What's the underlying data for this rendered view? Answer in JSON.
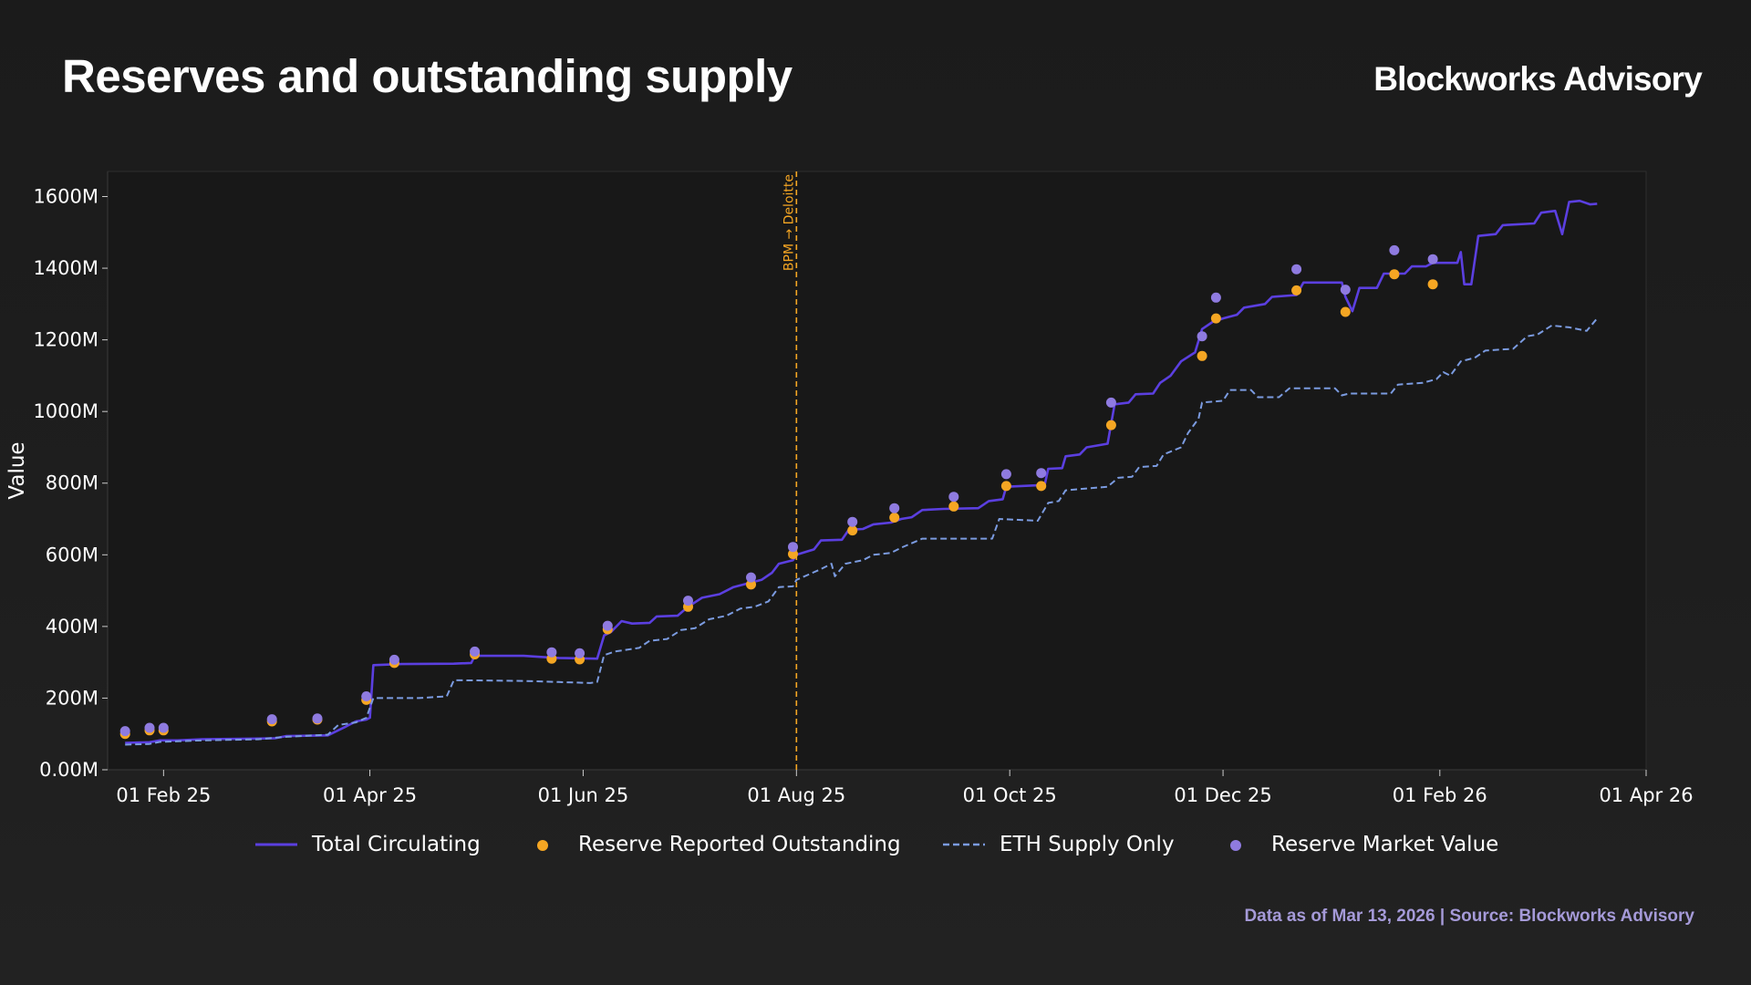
{
  "header": {
    "title": "Reserves and outstanding supply",
    "brand": "Blockworks Advisory"
  },
  "footer": {
    "note": "Data as of Mar 13, 2026 | Source: Blockworks Advisory"
  },
  "colors": {
    "total_circulating": "#5b3fe0",
    "reserve_reported": "#f5a623",
    "eth_supply": "#7b9be0",
    "reserve_market": "#8f7be0",
    "annotation": "#f5a623",
    "plot_bg": "#181818"
  },
  "chart_data": {
    "type": "line",
    "title": "Reserves and outstanding supply",
    "xlabel": "",
    "ylabel": "Value",
    "x_type": "date",
    "xlim": [
      "2025-01-16",
      "2026-04-01"
    ],
    "ylim": [
      0,
      1670
    ],
    "y_unit": "M",
    "y_ticks": [
      0,
      200,
      400,
      600,
      800,
      1000,
      1200,
      1400,
      1600
    ],
    "y_tick_labels": [
      "0.00M",
      "200M",
      "400M",
      "600M",
      "800M",
      "1000M",
      "1200M",
      "1400M",
      "1600M"
    ],
    "x_ticks": [
      "2025-02-01",
      "2025-04-01",
      "2025-06-01",
      "2025-08-01",
      "2025-10-01",
      "2025-12-01",
      "2026-02-01",
      "2026-04-01"
    ],
    "x_tick_labels": [
      "01 Feb 25",
      "01 Apr 25",
      "01 Jun 25",
      "01 Aug 25",
      "01 Oct 25",
      "01 Dec 25",
      "01 Feb 26",
      "01 Apr 26"
    ],
    "legend_position": "bottom",
    "grid": false,
    "annotations": [
      {
        "x": "2025-08-01",
        "label": "BPM → Deloitte",
        "style": "dashed-vertical"
      }
    ],
    "series": [
      {
        "name": "Total Circulating",
        "style": "solid-line",
        "points": [
          [
            "2025-01-21",
            75
          ],
          [
            "2025-01-28",
            77
          ],
          [
            "2025-01-31",
            82
          ],
          [
            "2025-02-05",
            82
          ],
          [
            "2025-02-12",
            85
          ],
          [
            "2025-02-20",
            86
          ],
          [
            "2025-02-28",
            87
          ],
          [
            "2025-03-05",
            88
          ],
          [
            "2025-03-08",
            94
          ],
          [
            "2025-03-20",
            96
          ],
          [
            "2025-03-25",
            120
          ],
          [
            "2025-03-28",
            135
          ],
          [
            "2025-03-31",
            140
          ],
          [
            "2025-04-01",
            145
          ],
          [
            "2025-04-02",
            292
          ],
          [
            "2025-04-10",
            295
          ],
          [
            "2025-04-25",
            296
          ],
          [
            "2025-04-30",
            298
          ],
          [
            "2025-05-01",
            318
          ],
          [
            "2025-05-15",
            318
          ],
          [
            "2025-05-20",
            315
          ],
          [
            "2025-05-25",
            312
          ],
          [
            "2025-06-05",
            310
          ],
          [
            "2025-06-07",
            375
          ],
          [
            "2025-06-09",
            385
          ],
          [
            "2025-06-12",
            415
          ],
          [
            "2025-06-15",
            408
          ],
          [
            "2025-06-20",
            410
          ],
          [
            "2025-06-22",
            428
          ],
          [
            "2025-06-28",
            430
          ],
          [
            "2025-07-01",
            455
          ],
          [
            "2025-07-05",
            480
          ],
          [
            "2025-07-10",
            490
          ],
          [
            "2025-07-14",
            510
          ],
          [
            "2025-07-18",
            520
          ],
          [
            "2025-07-22",
            530
          ],
          [
            "2025-07-25",
            550
          ],
          [
            "2025-07-27",
            575
          ],
          [
            "2025-07-31",
            585
          ],
          [
            "2025-08-01",
            600
          ],
          [
            "2025-08-06",
            615
          ],
          [
            "2025-08-08",
            640
          ],
          [
            "2025-08-14",
            642
          ],
          [
            "2025-08-16",
            670
          ],
          [
            "2025-08-20",
            672
          ],
          [
            "2025-08-23",
            685
          ],
          [
            "2025-08-28",
            690
          ],
          [
            "2025-08-31",
            700
          ],
          [
            "2025-09-03",
            705
          ],
          [
            "2025-09-06",
            725
          ],
          [
            "2025-09-12",
            728
          ],
          [
            "2025-09-22",
            730
          ],
          [
            "2025-09-25",
            750
          ],
          [
            "2025-09-29",
            755
          ],
          [
            "2025-09-30",
            790
          ],
          [
            "2025-10-11",
            795
          ],
          [
            "2025-10-12",
            840
          ],
          [
            "2025-10-16",
            842
          ],
          [
            "2025-10-17",
            875
          ],
          [
            "2025-10-21",
            880
          ],
          [
            "2025-10-23",
            900
          ],
          [
            "2025-10-29",
            910
          ],
          [
            "2025-10-31",
            1020
          ],
          [
            "2025-11-04",
            1025
          ],
          [
            "2025-11-06",
            1048
          ],
          [
            "2025-11-11",
            1050
          ],
          [
            "2025-11-13",
            1080
          ],
          [
            "2025-11-16",
            1100
          ],
          [
            "2025-11-19",
            1140
          ],
          [
            "2025-11-23",
            1165
          ],
          [
            "2025-11-25",
            1230
          ],
          [
            "2025-11-28",
            1250
          ],
          [
            "2025-12-01",
            1260
          ],
          [
            "2025-12-05",
            1270
          ],
          [
            "2025-12-07",
            1290
          ],
          [
            "2025-12-13",
            1300
          ],
          [
            "2025-12-15",
            1320
          ],
          [
            "2025-12-22",
            1325
          ],
          [
            "2025-12-24",
            1360
          ],
          [
            "2026-01-04",
            1360
          ],
          [
            "2026-01-05",
            1320
          ],
          [
            "2026-01-07",
            1280
          ],
          [
            "2026-01-09",
            1345
          ],
          [
            "2026-01-14",
            1345
          ],
          [
            "2026-01-16",
            1385
          ],
          [
            "2026-01-22",
            1385
          ],
          [
            "2026-01-24",
            1405
          ],
          [
            "2026-01-28",
            1405
          ],
          [
            "2026-01-30",
            1415
          ],
          [
            "2026-02-06",
            1415
          ],
          [
            "2026-02-07",
            1445
          ],
          [
            "2026-02-08",
            1355
          ],
          [
            "2026-02-10",
            1355
          ],
          [
            "2026-02-12",
            1490
          ],
          [
            "2026-02-17",
            1495
          ],
          [
            "2026-02-19",
            1520
          ],
          [
            "2026-02-28",
            1525
          ],
          [
            "2026-03-02",
            1555
          ],
          [
            "2026-03-06",
            1560
          ],
          [
            "2026-03-08",
            1495
          ],
          [
            "2026-03-10",
            1585
          ],
          [
            "2026-03-13",
            1588
          ],
          [
            "2026-03-16",
            1578
          ],
          [
            "2026-03-18",
            1580
          ]
        ]
      },
      {
        "name": "ETH Supply Only",
        "style": "dashed-line",
        "points": [
          [
            "2025-01-21",
            70
          ],
          [
            "2025-01-28",
            72
          ],
          [
            "2025-01-31",
            78
          ],
          [
            "2025-02-12",
            82
          ],
          [
            "2025-02-28",
            85
          ],
          [
            "2025-03-08",
            92
          ],
          [
            "2025-03-20",
            98
          ],
          [
            "2025-03-23",
            125
          ],
          [
            "2025-03-28",
            132
          ],
          [
            "2025-03-31",
            145
          ],
          [
            "2025-04-02",
            200
          ],
          [
            "2025-04-15",
            200
          ],
          [
            "2025-04-23",
            205
          ],
          [
            "2025-04-25",
            250
          ],
          [
            "2025-05-15",
            248
          ],
          [
            "2025-05-25",
            245
          ],
          [
            "2025-06-03",
            242
          ],
          [
            "2025-06-05",
            245
          ],
          [
            "2025-06-07",
            320
          ],
          [
            "2025-06-10",
            330
          ],
          [
            "2025-06-17",
            340
          ],
          [
            "2025-06-20",
            360
          ],
          [
            "2025-06-25",
            365
          ],
          [
            "2025-06-29",
            390
          ],
          [
            "2025-07-03",
            395
          ],
          [
            "2025-07-07",
            420
          ],
          [
            "2025-07-12",
            430
          ],
          [
            "2025-07-16",
            450
          ],
          [
            "2025-07-20",
            455
          ],
          [
            "2025-07-24",
            470
          ],
          [
            "2025-07-27",
            510
          ],
          [
            "2025-07-31",
            512
          ],
          [
            "2025-08-01",
            530
          ],
          [
            "2025-08-08",
            560
          ],
          [
            "2025-08-11",
            575
          ],
          [
            "2025-08-12",
            540
          ],
          [
            "2025-08-15",
            575
          ],
          [
            "2025-08-20",
            585
          ],
          [
            "2025-08-23",
            600
          ],
          [
            "2025-08-28",
            605
          ],
          [
            "2025-08-31",
            620
          ],
          [
            "2025-09-06",
            645
          ],
          [
            "2025-09-26",
            645
          ],
          [
            "2025-09-28",
            700
          ],
          [
            "2025-10-09",
            695
          ],
          [
            "2025-10-12",
            745
          ],
          [
            "2025-10-15",
            750
          ],
          [
            "2025-10-17",
            780
          ],
          [
            "2025-10-23",
            785
          ],
          [
            "2025-10-29",
            790
          ],
          [
            "2025-11-01",
            815
          ],
          [
            "2025-11-05",
            818
          ],
          [
            "2025-11-07",
            845
          ],
          [
            "2025-11-12",
            848
          ],
          [
            "2025-11-14",
            880
          ],
          [
            "2025-11-19",
            900
          ],
          [
            "2025-11-21",
            940
          ],
          [
            "2025-11-24",
            980
          ],
          [
            "2025-11-25",
            1025
          ],
          [
            "2025-12-01",
            1030
          ],
          [
            "2025-12-03",
            1060
          ],
          [
            "2025-12-09",
            1060
          ],
          [
            "2025-12-11",
            1040
          ],
          [
            "2025-12-17",
            1040
          ],
          [
            "2025-12-20",
            1065
          ],
          [
            "2026-01-02",
            1065
          ],
          [
            "2026-01-04",
            1045
          ],
          [
            "2026-01-06",
            1050
          ],
          [
            "2026-01-18",
            1050
          ],
          [
            "2026-01-20",
            1075
          ],
          [
            "2026-01-27",
            1080
          ],
          [
            "2026-01-31",
            1090
          ],
          [
            "2026-02-02",
            1110
          ],
          [
            "2026-02-04",
            1100
          ],
          [
            "2026-02-07",
            1140
          ],
          [
            "2026-02-11",
            1150
          ],
          [
            "2026-02-14",
            1170
          ],
          [
            "2026-02-22",
            1175
          ],
          [
            "2026-02-26",
            1210
          ],
          [
            "2026-03-01",
            1215
          ],
          [
            "2026-03-05",
            1240
          ],
          [
            "2026-03-10",
            1235
          ],
          [
            "2026-03-15",
            1225
          ],
          [
            "2026-03-18",
            1260
          ]
        ]
      },
      {
        "name": "Reserve Reported Outstanding",
        "style": "dot",
        "points": [
          [
            "2025-01-21",
            100
          ],
          [
            "2025-01-28",
            110
          ],
          [
            "2025-02-01",
            110
          ],
          [
            "2025-03-04",
            135
          ],
          [
            "2025-03-17",
            140
          ],
          [
            "2025-03-31",
            195
          ],
          [
            "2025-04-08",
            298
          ],
          [
            "2025-05-01",
            322
          ],
          [
            "2025-05-23",
            310
          ],
          [
            "2025-05-31",
            308
          ],
          [
            "2025-06-08",
            392
          ],
          [
            "2025-07-01",
            455
          ],
          [
            "2025-07-19",
            517
          ],
          [
            "2025-07-31",
            602
          ],
          [
            "2025-08-17",
            668
          ],
          [
            "2025-08-29",
            704
          ],
          [
            "2025-09-15",
            735
          ],
          [
            "2025-09-30",
            792
          ],
          [
            "2025-10-10",
            792
          ],
          [
            "2025-10-30",
            962
          ],
          [
            "2025-11-25",
            1155
          ],
          [
            "2025-11-29",
            1260
          ],
          [
            "2025-12-22",
            1338
          ],
          [
            "2026-01-05",
            1278
          ],
          [
            "2026-01-19",
            1383
          ],
          [
            "2026-01-30",
            1355
          ]
        ]
      },
      {
        "name": "Reserve Market Value",
        "style": "dot",
        "points": [
          [
            "2025-01-21",
            108
          ],
          [
            "2025-01-28",
            117
          ],
          [
            "2025-02-01",
            117
          ],
          [
            "2025-03-04",
            141
          ],
          [
            "2025-03-17",
            143
          ],
          [
            "2025-03-31",
            205
          ],
          [
            "2025-04-08",
            307
          ],
          [
            "2025-05-01",
            330
          ],
          [
            "2025-05-23",
            328
          ],
          [
            "2025-05-31",
            325
          ],
          [
            "2025-06-08",
            402
          ],
          [
            "2025-07-01",
            472
          ],
          [
            "2025-07-19",
            537
          ],
          [
            "2025-07-31",
            622
          ],
          [
            "2025-08-17",
            692
          ],
          [
            "2025-08-29",
            730
          ],
          [
            "2025-09-15",
            762
          ],
          [
            "2025-09-30",
            825
          ],
          [
            "2025-10-10",
            828
          ],
          [
            "2025-10-30",
            1025
          ],
          [
            "2025-11-25",
            1210
          ],
          [
            "2025-11-29",
            1318
          ],
          [
            "2025-12-22",
            1397
          ],
          [
            "2026-01-05",
            1340
          ],
          [
            "2026-01-19",
            1450
          ],
          [
            "2026-01-30",
            1425
          ]
        ]
      }
    ]
  },
  "legend": {
    "items": [
      {
        "label": "Total Circulating"
      },
      {
        "label": "Reserve Reported Outstanding"
      },
      {
        "label": "ETH Supply Only"
      },
      {
        "label": "Reserve Market Value"
      }
    ]
  }
}
